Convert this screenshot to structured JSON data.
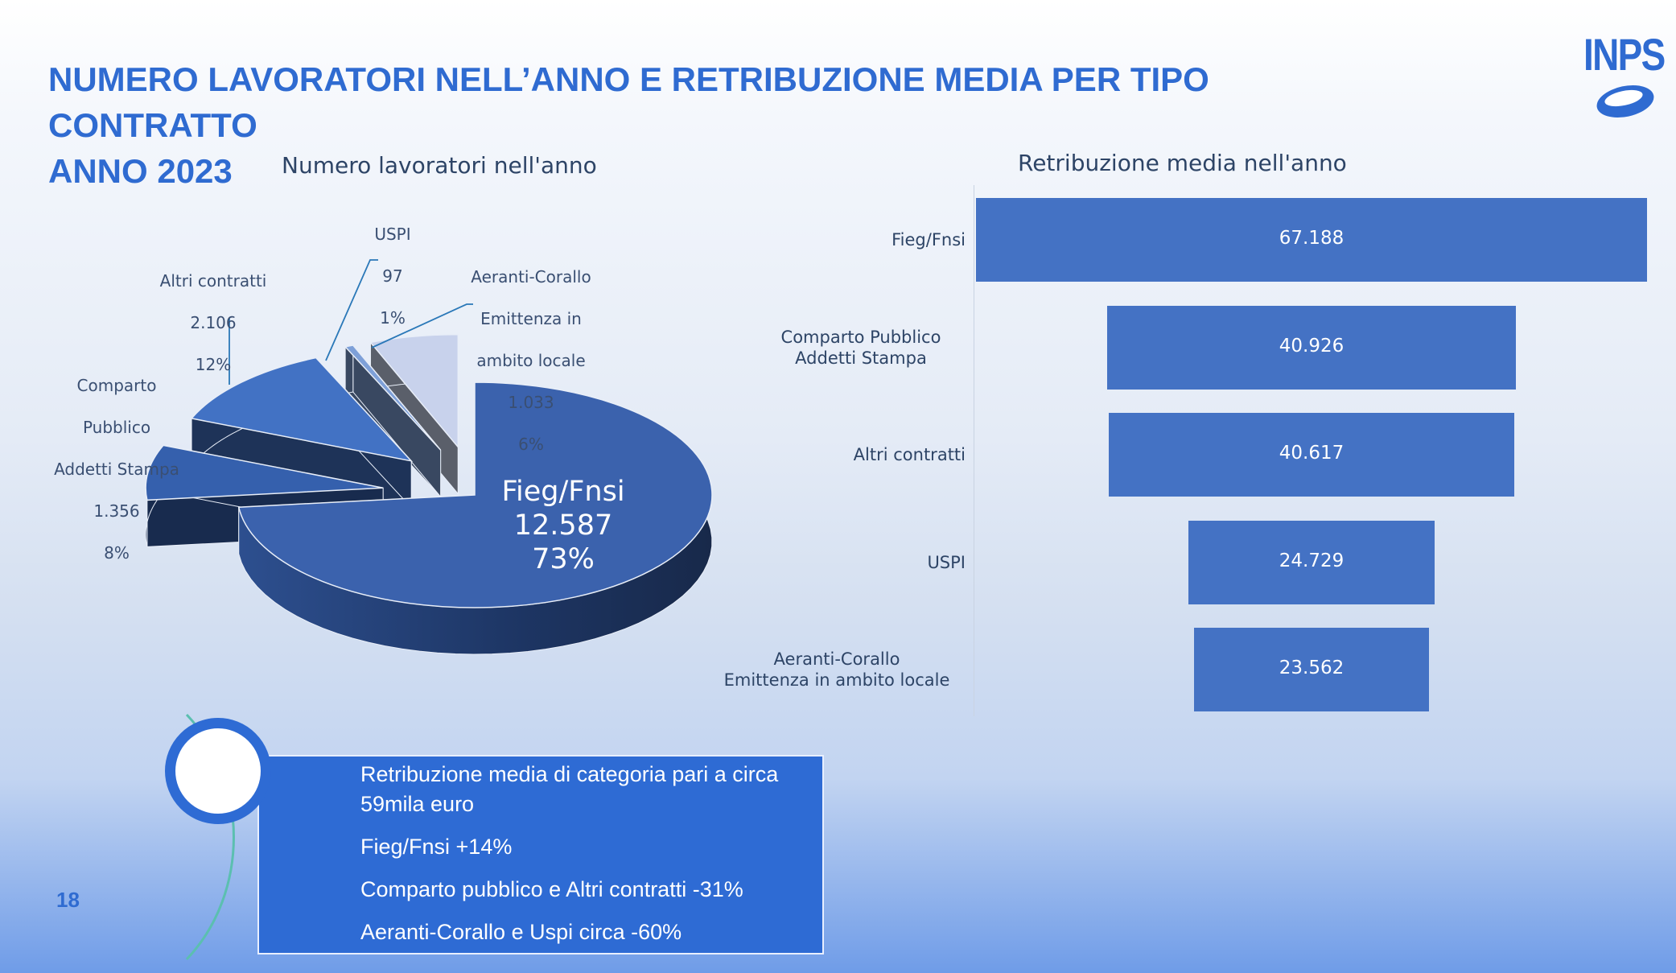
{
  "slide": {
    "title_line1": "NUMERO LAVORATORI NELL’ANNO E RETRIBUZIONE MEDIA PER TIPO CONTRATTO",
    "title_line2": "ANNO 2023",
    "logo_text": "INPS",
    "page_number": "18",
    "colors": {
      "title": "#2f6bd1",
      "bar": "#4472c4",
      "note_box": "#2e6bd4"
    }
  },
  "chart_data": [
    {
      "type": "pie",
      "title": "Numero lavoratori nell'anno",
      "slices": [
        {
          "label": "Fieg/Fnsi",
          "value": 12587,
          "value_text": "12.587",
          "percent": 73,
          "percent_text": "73%",
          "color": "#3b62ad"
        },
        {
          "label": "Comparto Pubblico Addetti Stampa",
          "value": 1356,
          "value_text": "1.356",
          "percent": 8,
          "percent_text": "8%",
          "color": "#3560ad"
        },
        {
          "label": "Altri contratti",
          "value": 2106,
          "value_text": "2.106",
          "percent": 12,
          "percent_text": "12%",
          "color": "#4272c4"
        },
        {
          "label": "USPI",
          "value": 97,
          "value_text": "97",
          "percent": 1,
          "percent_text": "1%",
          "color": "#7ea0d8"
        },
        {
          "label": "Aeranti-Corallo Emittenza in ambito locale",
          "value": 1033,
          "value_text": "1.033",
          "percent": 6,
          "percent_text": "6%",
          "color": "#c8d2ec"
        }
      ]
    },
    {
      "type": "bar",
      "orientation": "horizontal-centered",
      "title": "Retribuzione media nell'anno",
      "categories": [
        "Fieg/Fnsi",
        "Comparto Pubblico Addetti Stampa",
        "Altri contratti",
        "USPI",
        "Aeranti-Corallo Emittenza in ambito locale"
      ],
      "category_lines": [
        [
          "Fieg/Fnsi"
        ],
        [
          "Comparto Pubblico",
          "Addetti Stampa"
        ],
        [
          "Altri contratti"
        ],
        [
          "USPI"
        ],
        [
          "Aeranti-Corallo",
          "Emittenza in ambito locale"
        ]
      ],
      "values": [
        67188,
        40926,
        40617,
        24729,
        23562
      ],
      "value_labels": [
        "67.188",
        "40.926",
        "40.617",
        "24.729",
        "23.562"
      ]
    }
  ],
  "pie_labels": {
    "fieg": {
      "name": "Fieg/Fnsi",
      "value": "12.587",
      "percent": "73%"
    },
    "comparto": {
      "line1": "Comparto",
      "line2": "Pubblico",
      "line3": "Addetti Stampa",
      "value": "1.356",
      "percent": "8%"
    },
    "altri": {
      "name": "Altri contratti",
      "value": "2.106",
      "percent": "12%"
    },
    "uspi": {
      "name": "USPI",
      "value": "97",
      "percent": "1%"
    },
    "aeranti": {
      "line1": "Aeranti-Corallo",
      "line2": "Emittenza in",
      "line3": "ambito locale",
      "value": "1.033",
      "percent": "6%"
    }
  },
  "notes": [
    "Retribuzione media di categoria pari a circa",
    "59mila euro",
    "Fieg/Fnsi +14%",
    "Comparto pubblico e Altri contratti -31%",
    "Aeranti-Corallo e Uspi circa -60%"
  ]
}
